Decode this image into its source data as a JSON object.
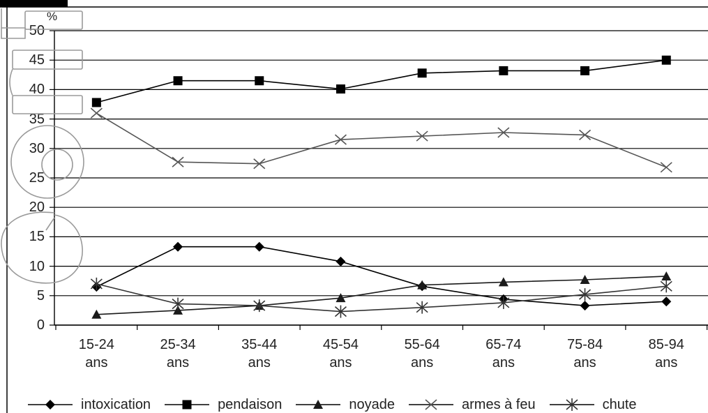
{
  "chart_data": {
    "type": "line",
    "title": "",
    "xlabel": "",
    "ylabel": "%",
    "ylim": [
      0,
      50
    ],
    "yticks": [
      0,
      5,
      10,
      15,
      20,
      25,
      30,
      35,
      40,
      45,
      50
    ],
    "grid": true,
    "legend_position": "bottom",
    "categories": [
      "15-24 ans",
      "25-34 ans",
      "35-44 ans",
      "45-54 ans",
      "55-64 ans",
      "65-74 ans",
      "75-84 ans",
      "85-94 ans"
    ],
    "series": [
      {
        "name": "intoxication",
        "marker": "diamond",
        "color": "#000000",
        "values": [
          6.5,
          13.3,
          13.3,
          10.8,
          6.6,
          4.4,
          3.3,
          4.0
        ]
      },
      {
        "name": "pendaison",
        "marker": "square",
        "color": "#000000",
        "values": [
          37.8,
          41.5,
          41.5,
          40.1,
          42.8,
          43.2,
          43.2,
          45.0
        ]
      },
      {
        "name": "noyade",
        "marker": "triangle",
        "color": "#1a1a1a",
        "values": [
          1.8,
          2.5,
          3.3,
          4.6,
          6.8,
          7.3,
          7.7,
          8.3
        ]
      },
      {
        "name": "armes à feu",
        "marker": "x",
        "color": "#555555",
        "values": [
          36.0,
          27.7,
          27.4,
          31.5,
          32.1,
          32.7,
          32.3,
          26.8
        ]
      },
      {
        "name": "chute",
        "marker": "asterisk",
        "color": "#333333",
        "values": [
          7.0,
          3.6,
          3.3,
          2.3,
          3.0,
          3.8,
          5.2,
          6.6
        ]
      }
    ]
  }
}
